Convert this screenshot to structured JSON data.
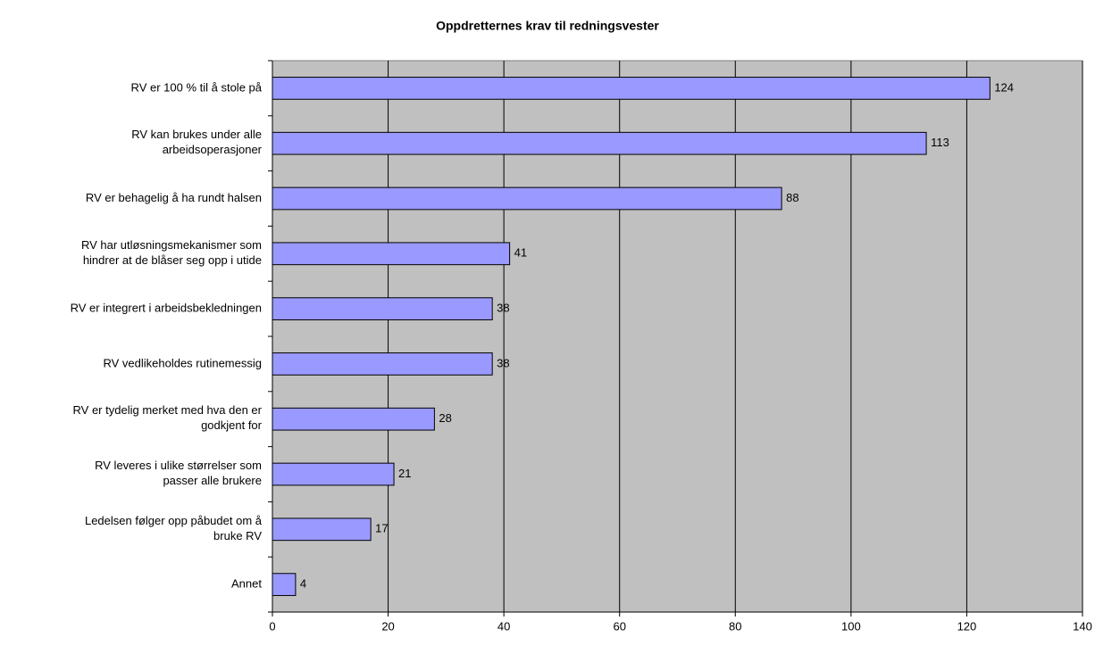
{
  "chart_data": {
    "type": "bar",
    "orientation": "horizontal",
    "title": "Oppdretternes krav til redningsvester",
    "categories": [
      "RV er 100 % til å stole på",
      "RV kan brukes under alle\narbeidsoperasjoner",
      "RV er behagelig å ha rundt halsen",
      "RV har utløsningsmekanismer som\nhindrer at de blåser seg opp i utide",
      "RV er integrert i arbeidsbekledningen",
      "RV vedlikeholdes rutinemessig",
      "RV er tydelig merket med hva den er\ngodkjent for",
      "RV leveres i ulike størrelser som\npasser alle brukere",
      "Ledelsen følger opp påbudet om å\nbruke RV",
      "Annet"
    ],
    "values": [
      124,
      113,
      88,
      41,
      38,
      38,
      28,
      21,
      17,
      4
    ],
    "color": "#9999ff",
    "xlim": [
      0,
      140
    ],
    "xticks": [
      0,
      20,
      40,
      60,
      80,
      100,
      120,
      140
    ],
    "grid": true
  }
}
